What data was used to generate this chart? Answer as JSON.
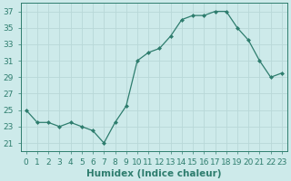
{
  "x": [
    0,
    1,
    2,
    3,
    4,
    5,
    6,
    7,
    8,
    9,
    10,
    11,
    12,
    13,
    14,
    15,
    16,
    17,
    18,
    19,
    20,
    21,
    22,
    23
  ],
  "y": [
    25,
    23.5,
    23.5,
    23,
    23.5,
    23,
    22.5,
    21,
    23.5,
    25.5,
    31,
    32,
    32.5,
    34,
    36,
    36.5,
    36.5,
    37,
    37,
    35,
    33.5,
    31,
    29,
    29.5
  ],
  "line_color": "#2e7d6e",
  "marker_color": "#2e7d6e",
  "bg_color": "#cdeaea",
  "grid_color": "#b8d8d8",
  "xlabel": "Humidex (Indice chaleur)",
  "xlim": [
    -0.5,
    23.5
  ],
  "ylim": [
    20,
    38
  ],
  "yticks": [
    21,
    23,
    25,
    27,
    29,
    31,
    33,
    35,
    37
  ],
  "xticks": [
    0,
    1,
    2,
    3,
    4,
    5,
    6,
    7,
    8,
    9,
    10,
    11,
    12,
    13,
    14,
    15,
    16,
    17,
    18,
    19,
    20,
    21,
    22,
    23
  ],
  "tick_label_color": "#2e7d6e",
  "font_size": 6.5,
  "xlabel_fontsize": 7.5
}
